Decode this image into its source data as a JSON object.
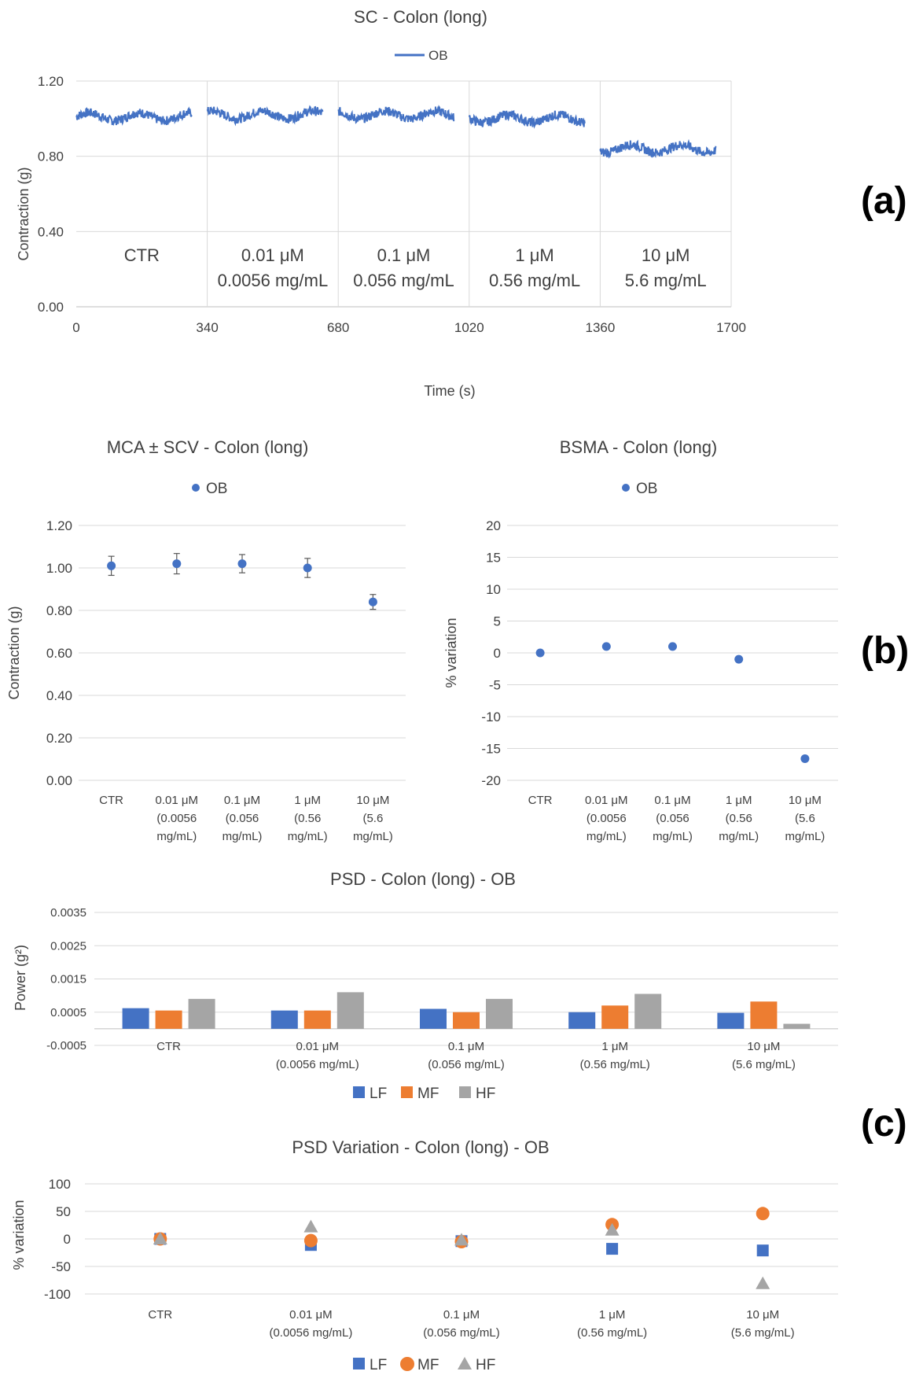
{
  "panel_labels": {
    "a": "(a)",
    "b": "(b)",
    "c": "(c)"
  },
  "colors": {
    "lf": "#4472C4",
    "mf": "#ED7D31",
    "hf": "#A5A5A5",
    "ob": "#4472C4"
  },
  "chart_data": [
    {
      "id": "sc",
      "type": "line",
      "title": "SC - Colon (long)",
      "legend": [
        "OB"
      ],
      "xlabel": "Time (s)",
      "ylabel": "Contraction (g)",
      "xlim": [
        0,
        1700
      ],
      "ylim": [
        0,
        1.2
      ],
      "x_ticks": [
        0,
        340,
        680,
        1020,
        1360,
        1700
      ],
      "y_tick_labels": [
        "0.00",
        "0.40",
        "0.80",
        "1.20"
      ],
      "segments": [
        {
          "label1": "CTR",
          "label2": "",
          "x_start": 0,
          "x_end": 300,
          "mean": 1.01,
          "noise": 0.035
        },
        {
          "label1": "0.01 μM",
          "label2": "0.0056 mg/mL",
          "x_start": 340,
          "x_end": 640,
          "mean": 1.02,
          "noise": 0.035
        },
        {
          "label1": "0.1 μM",
          "label2": "0.056 mg/mL",
          "x_start": 680,
          "x_end": 980,
          "mean": 1.02,
          "noise": 0.035
        },
        {
          "label1": "1 μM",
          "label2": "0.56 mg/mL",
          "x_start": 1020,
          "x_end": 1320,
          "mean": 1.0,
          "noise": 0.035
        },
        {
          "label1": "10 μM",
          "label2": "5.6 mg/mL",
          "x_start": 1360,
          "x_end": 1660,
          "mean": 0.84,
          "noise": 0.035
        }
      ]
    },
    {
      "id": "mca",
      "type": "scatter",
      "title": "MCA ± SCV - Colon (long)",
      "legend": [
        "OB"
      ],
      "ylabel": "Contraction (g)",
      "ylim": [
        0,
        1.2
      ],
      "y_tick_labels": [
        "0.00",
        "0.20",
        "0.40",
        "0.60",
        "0.80",
        "1.00",
        "1.20"
      ],
      "categories": [
        [
          "CTR"
        ],
        [
          "0.01 μM",
          "(0.0056",
          "mg/mL)"
        ],
        [
          "0.1 μM",
          "(0.056",
          "mg/mL)"
        ],
        [
          "1 μM",
          "(0.56",
          "mg/mL)"
        ],
        [
          "10 μM",
          "(5.6",
          "mg/mL)"
        ]
      ],
      "values": [
        1.01,
        1.02,
        1.02,
        1.0,
        0.84
      ],
      "errors": [
        0.045,
        0.048,
        0.043,
        0.045,
        0.035
      ]
    },
    {
      "id": "bsma",
      "type": "scatter",
      "title": "BSMA - Colon (long)",
      "legend": [
        "OB"
      ],
      "ylabel": "% variation",
      "ylim": [
        -20,
        20
      ],
      "y_tick_labels": [
        "-20",
        "-15",
        "-10",
        "-5",
        "0",
        "5",
        "10",
        "15",
        "20"
      ],
      "categories": [
        [
          "CTR"
        ],
        [
          "0.01 μM",
          "(0.0056",
          "mg/mL)"
        ],
        [
          "0.1 μM",
          "(0.056",
          "mg/mL)"
        ],
        [
          "1 μM",
          "(0.56",
          "mg/mL)"
        ],
        [
          "10 μM",
          "(5.6",
          "mg/mL)"
        ]
      ],
      "values": [
        0,
        1,
        1,
        -1,
        -16.6
      ]
    },
    {
      "id": "psd",
      "type": "bar",
      "title": "PSD - Colon (long) - OB",
      "ylabel": "Power (g²)",
      "ylim": [
        -0.0005,
        0.0035
      ],
      "y_tick_labels": [
        "-0.0005",
        "0.0005",
        "0.0015",
        "0.0025",
        "0.0035"
      ],
      "categories": [
        [
          "CTR"
        ],
        [
          "0.01 μM",
          "(0.0056 mg/mL)"
        ],
        [
          "0.1 μM",
          "(0.056 mg/mL)"
        ],
        [
          "1 μM",
          "(0.56 mg/mL)"
        ],
        [
          "10 μM",
          "(5.6 mg/mL)"
        ]
      ],
      "series": [
        {
          "name": "LF",
          "values": [
            0.00062,
            0.00055,
            0.0006,
            0.0005,
            0.00048
          ]
        },
        {
          "name": "MF",
          "values": [
            0.00055,
            0.00055,
            0.0005,
            0.0007,
            0.00082
          ]
        },
        {
          "name": "HF",
          "values": [
            0.0009,
            0.0011,
            0.0009,
            0.00105,
            0.00015
          ]
        }
      ]
    },
    {
      "id": "psdvar",
      "type": "scatter",
      "title": "PSD Variation - Colon (long) - OB",
      "ylabel": "% variation",
      "ylim": [
        -100,
        100
      ],
      "y_tick_labels": [
        "-100",
        "-50",
        "0",
        "50",
        "100"
      ],
      "categories": [
        [
          "CTR"
        ],
        [
          "0.01 μM",
          "(0.0056 mg/mL)"
        ],
        [
          "0.1 μM",
          "(0.056 mg/mL)"
        ],
        [
          "1 μM",
          "(0.56 mg/mL)"
        ],
        [
          "10 μM",
          "(5.6 mg/mL)"
        ]
      ],
      "series": [
        {
          "name": "LF",
          "marker": "square",
          "values": [
            0,
            -11,
            -4,
            -18,
            -21
          ]
        },
        {
          "name": "MF",
          "marker": "circle",
          "values": [
            0,
            -3,
            -5,
            26,
            46
          ]
        },
        {
          "name": "HF",
          "marker": "triangle",
          "values": [
            0,
            22,
            -2,
            16,
            -81
          ]
        }
      ]
    }
  ]
}
